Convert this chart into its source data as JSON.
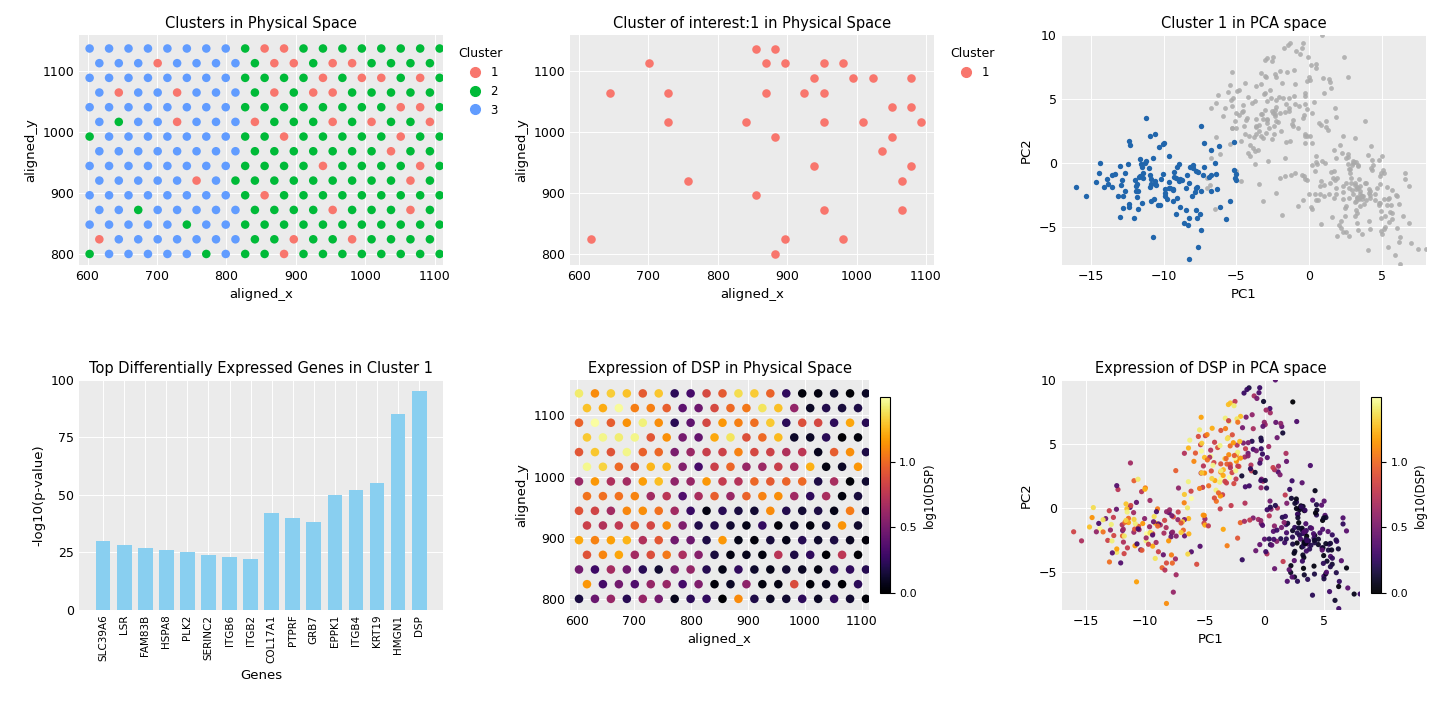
{
  "plot1_title": "Clusters in Physical Space",
  "plot2_title": "Cluster of interest:1 in Physical Space",
  "plot3_title": "Cluster 1 in PCA space",
  "plot4_title": "Top Differentially Expressed Genes in Cluster 1",
  "plot5_title": "Expression of DSP in Physical Space",
  "plot6_title": "Expression of DSP in PCA space",
  "xlabel_physical": "aligned_x",
  "ylabel_physical": "aligned_y",
  "xlabel_pca": "PC1",
  "ylabel_pca": "PC2",
  "cluster_colors": {
    "1": "#F8766D",
    "2": "#00BA38",
    "3": "#619CFF"
  },
  "cluster1_color": "#F8766D",
  "cluster1_pca_color": "#2166AC",
  "other_cluster_color": "#AAAAAA",
  "genes": [
    "SLC39A6",
    "LSR",
    "FAM83B",
    "HSPA8",
    "PLK2",
    "SERINC2",
    "ITGB6",
    "ITGB2",
    "COL17A1",
    "PTPRF",
    "GRB7",
    "EPPK1",
    "ITGB4",
    "KRT19",
    "HMGN1",
    "DSP"
  ],
  "pvalues": [
    30,
    28,
    27,
    26,
    25,
    24,
    23,
    22,
    42,
    40,
    38,
    50,
    52,
    55,
    85,
    95
  ],
  "bar_color": "#89CFF0",
  "colormap_dsp": "inferno",
  "dsp_label": "log10(DSP)",
  "dsp_vmin": 0.0,
  "dsp_vmax": 1.5
}
